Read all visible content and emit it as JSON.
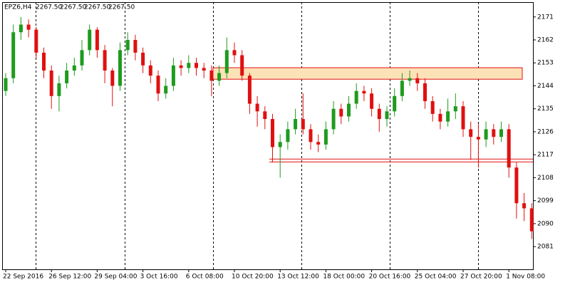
{
  "chart_data": {
    "type": "candlestick",
    "title": "EPZ6,H4",
    "quote": [
      {
        "value": 2267.5,
        "label": "2267.50"
      },
      {
        "value": 2267.5,
        "label": "2267.50"
      },
      {
        "value": 2267.5,
        "label": "2267.50"
      },
      {
        "value": 2267.5,
        "label": "2267.50"
      }
    ],
    "categories": [
      "22 Sep 2016",
      null,
      null,
      null,
      null,
      null,
      "26 Sep 12:00",
      null,
      null,
      null,
      null,
      null,
      "29 Sep 04:00",
      null,
      null,
      null,
      null,
      null,
      "3 Oct 16:00",
      null,
      null,
      null,
      null,
      null,
      "6 Oct 08:00",
      null,
      null,
      null,
      null,
      null,
      "10 Oct 20:00",
      null,
      null,
      null,
      null,
      null,
      "13 Oct 12:00",
      null,
      null,
      null,
      null,
      null,
      "18 Oct 00:00",
      null,
      null,
      null,
      null,
      null,
      "20 Oct 16:00",
      null,
      null,
      null,
      null,
      null,
      "25 Oct 04:00",
      null,
      null,
      null,
      null,
      null,
      "27 Oct 20:00",
      null,
      null,
      null,
      null,
      null,
      "1 Nov 08:00",
      null,
      null,
      null
    ],
    "open": [
      2142,
      2147,
      2165,
      2168,
      2166,
      2157,
      2150,
      2140,
      2145,
      2150,
      2152,
      2158,
      2166,
      2158,
      2150,
      2144,
      2158,
      2162,
      2157,
      2152,
      2148,
      2141,
      2144,
      2152,
      2151,
      2153,
      2151,
      2150,
      2146,
      2149,
      2158,
      2156,
      2148,
      2137,
      2134,
      2131,
      2120,
      2122,
      2127,
      2131,
      2127,
      2122,
      2121,
      2127,
      2135,
      2132,
      2137,
      2142,
      2141,
      2135,
      2131,
      2134,
      2140,
      2146,
      2147,
      2145,
      2138,
      2133,
      2130,
      2134,
      2136,
      2127,
      2124,
      2123,
      2127,
      2124,
      2127,
      2112,
      2098,
      2096
    ],
    "high": [
      2149,
      2168,
      2171,
      2170,
      2167,
      2159,
      2152,
      2148,
      2153,
      2155,
      2162,
      2168,
      2167,
      2160,
      2151,
      2161,
      2165,
      2164,
      2159,
      2154,
      2150,
      2147,
      2155,
      2154,
      2156,
      2155,
      2153,
      2152,
      2152,
      2163,
      2161,
      2158,
      2149,
      2140,
      2136,
      2133,
      2125,
      2130,
      2135,
      2141,
      2129,
      2125,
      2130,
      2138,
      2137,
      2140,
      2145,
      2144,
      2143,
      2137,
      2136,
      2143,
      2149,
      2150,
      2149,
      2147,
      2140,
      2135,
      2139,
      2141,
      2138,
      2130,
      2129,
      2130,
      2129,
      2130,
      2129,
      2114,
      2102,
      2098
    ],
    "low": [
      2140,
      2145,
      2162,
      2163,
      2155,
      2147,
      2135,
      2134,
      2143,
      2148,
      2150,
      2156,
      2155,
      2145,
      2136,
      2142,
      2156,
      2154,
      2149,
      2145,
      2138,
      2139,
      2142,
      2148,
      2149,
      2148,
      2147,
      2140,
      2144,
      2147,
      2153,
      2146,
      2133,
      2128,
      2127,
      2114,
      2108,
      2119,
      2125,
      2125,
      2119,
      2118,
      2119,
      2125,
      2129,
      2130,
      2135,
      2138,
      2132,
      2126,
      2128,
      2132,
      2138,
      2144,
      2142,
      2135,
      2130,
      2127,
      2128,
      2131,
      2124,
      2115,
      2112,
      2120,
      2121,
      2122,
      2108,
      2092,
      2091,
      2084
    ],
    "close": [
      2147,
      2165,
      2168,
      2166,
      2157,
      2150,
      2140,
      2145,
      2150,
      2152,
      2158,
      2166,
      2158,
      2150,
      2144,
      2158,
      2162,
      2157,
      2152,
      2148,
      2141,
      2144,
      2152,
      2151,
      2153,
      2151,
      2150,
      2146,
      2149,
      2158,
      2156,
      2148,
      2137,
      2134,
      2131,
      2120,
      2122,
      2127,
      2131,
      2127,
      2122,
      2121,
      2127,
      2135,
      2132,
      2137,
      2142,
      2141,
      2135,
      2131,
      2134,
      2140,
      2146,
      2147,
      2145,
      2138,
      2133,
      2130,
      2134,
      2136,
      2127,
      2124,
      2123,
      2127,
      2124,
      2127,
      2112,
      2098,
      2096,
      2087
    ],
    "up_color": "#1e9b1e",
    "down_color": "#e01010",
    "zones": [
      [
        2151.1,
        2146.6
      ]
    ],
    "zone_color": "#fde2b8",
    "levels": [
      2115.3,
      2114.2
    ],
    "level_color": "#e01010",
    "ylim": [
      2072.1,
      2176.8
    ],
    "yticks": [
      2081,
      2090,
      2099,
      2108,
      2117,
      2126,
      2135,
      2144,
      2153,
      2162,
      2171
    ]
  }
}
